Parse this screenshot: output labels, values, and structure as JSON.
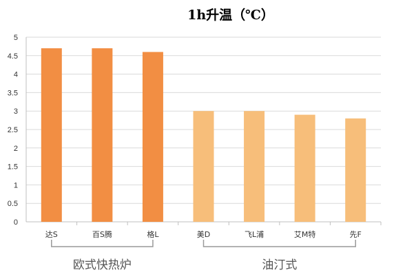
{
  "chart_data": {
    "type": "bar",
    "title": "1h升温（℃）",
    "categories": [
      "达S",
      "百S腾",
      "格L",
      "美D",
      "飞L浦",
      "艾M特",
      "先F"
    ],
    "values": [
      4.7,
      4.7,
      4.6,
      3.0,
      3.0,
      2.9,
      2.8
    ],
    "ylim": [
      0,
      5
    ],
    "yticks": [
      "0",
      "0.5",
      "1",
      "1.5",
      "2",
      "2.5",
      "3",
      "3.5",
      "4",
      "4.5",
      "5"
    ],
    "grid": true,
    "bar_colors": [
      "#F28E43",
      "#F28E43",
      "#F28E43",
      "#F7BE7A",
      "#F7BE7A",
      "#F7BE7A",
      "#F7BE7A"
    ],
    "groups": [
      {
        "label": "欧式快热炉",
        "from": 0,
        "to": 2
      },
      {
        "label": "油汀式",
        "from": 3,
        "to": 6
      }
    ]
  }
}
